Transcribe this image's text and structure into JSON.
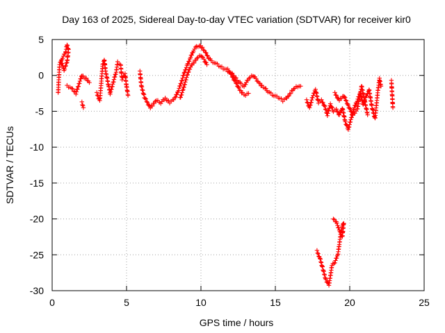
{
  "chart_data": {
    "type": "scatter",
    "title": "Day 163 of 2025, Sidereal Day-to-day VTEC variation (SDTVAR) for receiver kir0",
    "xlabel": "GPS time / hours",
    "ylabel": "SDTVAR / TECUs",
    "xlim": [
      0,
      25
    ],
    "ylim": [
      -30,
      5
    ],
    "xticks": [
      "0",
      "5",
      "10",
      "15",
      "20",
      "25"
    ],
    "yticks": [
      "5",
      "0",
      "-5",
      "-10",
      "-15",
      "-20",
      "-25",
      "-30"
    ],
    "grid": true,
    "marker": "+",
    "color": "#ff0000",
    "series": [
      {
        "name": "SDTVAR",
        "segments": [
          [
            [
              0.4,
              -2.5
            ],
            [
              0.5,
              1.5
            ],
            [
              0.7,
              2.5
            ],
            [
              0.9,
              3.2
            ],
            [
              1.0,
              4.3
            ],
            [
              1.1,
              3.5
            ],
            [
              1.0,
              1.8
            ],
            [
              0.8,
              0.8
            ],
            [
              0.6,
              2.0
            ]
          ],
          [
            [
              1.0,
              -1.5
            ],
            [
              1.3,
              -1.8
            ],
            [
              1.6,
              -2.5
            ],
            [
              1.8,
              -1.2
            ],
            [
              2.0,
              0.0
            ],
            [
              2.3,
              -0.5
            ],
            [
              2.5,
              -1.0
            ]
          ],
          [
            [
              2.0,
              -3.8
            ],
            [
              2.1,
              -4.5
            ]
          ],
          [
            [
              3.0,
              -2.5
            ],
            [
              3.2,
              -3.5
            ],
            [
              3.3,
              -1.0
            ],
            [
              3.4,
              1.5
            ],
            [
              3.5,
              2.2
            ],
            [
              3.6,
              0.5
            ],
            [
              3.8,
              -1.5
            ],
            [
              3.9,
              -2.5
            ],
            [
              4.1,
              -1.0
            ],
            [
              4.3,
              0.5
            ],
            [
              4.4,
              1.8
            ],
            [
              4.6,
              1.5
            ],
            [
              4.7,
              -0.5
            ],
            [
              4.9,
              0.2
            ],
            [
              5.0,
              -1.5
            ],
            [
              5.1,
              -2.8
            ]
          ],
          [
            [
              5.9,
              0.5
            ],
            [
              6.0,
              -1.5
            ],
            [
              6.2,
              -3.0
            ],
            [
              6.4,
              -3.8
            ],
            [
              6.6,
              -4.5
            ],
            [
              6.8,
              -4.0
            ],
            [
              7.0,
              -3.5
            ],
            [
              7.3,
              -3.8
            ],
            [
              7.6,
              -3.2
            ],
            [
              7.9,
              -3.8
            ],
            [
              8.1,
              -3.5
            ],
            [
              8.3,
              -3.0
            ],
            [
              8.5,
              -2.0
            ],
            [
              8.7,
              -0.8
            ],
            [
              8.9,
              0.5
            ],
            [
              9.1,
              1.5
            ],
            [
              9.3,
              2.5
            ],
            [
              9.5,
              3.5
            ],
            [
              9.7,
              4.0
            ],
            [
              9.9,
              4.2
            ],
            [
              10.1,
              3.8
            ],
            [
              10.3,
              3.2
            ],
            [
              10.5,
              2.5
            ],
            [
              10.7,
              2.0
            ],
            [
              10.9,
              1.8
            ],
            [
              11.1,
              1.5
            ],
            [
              11.3,
              1.2
            ],
            [
              11.5,
              1.0
            ],
            [
              11.7,
              0.8
            ],
            [
              11.9,
              0.5
            ],
            [
              12.1,
              0.2
            ],
            [
              12.3,
              -0.3
            ],
            [
              12.5,
              -0.8
            ],
            [
              12.7,
              -1.2
            ],
            [
              12.9,
              -1.5
            ],
            [
              13.1,
              -0.8
            ],
            [
              13.3,
              -0.3
            ],
            [
              13.5,
              0.0
            ],
            [
              13.7,
              -0.5
            ],
            [
              13.9,
              -1.0
            ],
            [
              14.1,
              -1.5
            ],
            [
              14.3,
              -1.8
            ],
            [
              14.5,
              -2.2
            ],
            [
              14.7,
              -2.5
            ],
            [
              14.9,
              -2.8
            ],
            [
              15.1,
              -3.0
            ],
            [
              15.3,
              -3.2
            ],
            [
              15.5,
              -3.5
            ],
            [
              15.7,
              -3.2
            ],
            [
              15.9,
              -2.8
            ],
            [
              16.1,
              -2.2
            ],
            [
              16.3,
              -1.8
            ],
            [
              16.5,
              -1.5
            ],
            [
              16.7,
              -1.5
            ]
          ],
          [
            [
              8.6,
              -3.2
            ],
            [
              8.8,
              -2.0
            ],
            [
              9.0,
              -0.5
            ],
            [
              9.2,
              0.8
            ],
            [
              9.4,
              1.5
            ],
            [
              9.6,
              2.0
            ],
            [
              9.8,
              2.5
            ],
            [
              10.0,
              2.8
            ],
            [
              10.2,
              2.2
            ],
            [
              10.4,
              1.5
            ]
          ],
          [
            [
              11.8,
              0.8
            ],
            [
              12.0,
              0.2
            ],
            [
              12.2,
              -0.5
            ],
            [
              12.4,
              -1.2
            ],
            [
              12.6,
              -2.0
            ],
            [
              12.8,
              -2.5
            ],
            [
              13.0,
              -2.8
            ],
            [
              13.2,
              -2.5
            ]
          ],
          [
            [
              17.1,
              -3.5
            ],
            [
              17.3,
              -4.5
            ],
            [
              17.5,
              -3.0
            ],
            [
              17.7,
              -2.0
            ],
            [
              17.9,
              -3.8
            ],
            [
              18.1,
              -3.5
            ],
            [
              18.3,
              -4.2
            ],
            [
              18.5,
              -5.5
            ],
            [
              18.7,
              -4.0
            ],
            [
              18.9,
              -5.0
            ],
            [
              19.1,
              -4.8
            ],
            [
              19.3,
              -5.5
            ],
            [
              19.5,
              -4.5
            ],
            [
              19.7,
              -6.5
            ],
            [
              19.9,
              -7.5
            ],
            [
              20.1,
              -6.0
            ],
            [
              20.3,
              -4.5
            ],
            [
              20.5,
              -3.5
            ],
            [
              20.7,
              -2.5
            ],
            [
              20.9,
              -4.0
            ],
            [
              21.1,
              -3.0
            ],
            [
              21.3,
              -2.0
            ],
            [
              21.5,
              -4.5
            ],
            [
              21.7,
              -6.0
            ],
            [
              21.9,
              -2.0
            ],
            [
              22.0,
              -0.5
            ],
            [
              22.1,
              -1.5
            ]
          ],
          [
            [
              19.0,
              -2.5
            ],
            [
              19.3,
              -3.5
            ],
            [
              19.6,
              -2.8
            ],
            [
              19.9,
              -4.2
            ],
            [
              20.2,
              -5.5
            ],
            [
              20.5,
              -4.8
            ],
            [
              20.8,
              -1.5
            ],
            [
              21.2,
              -5.5
            ]
          ],
          [
            [
              22.8,
              -0.8
            ],
            [
              22.9,
              -4.5
            ]
          ],
          [
            [
              17.8,
              -24.5
            ],
            [
              18.0,
              -25.5
            ],
            [
              18.2,
              -27.0
            ],
            [
              18.4,
              -28.5
            ],
            [
              18.6,
              -29.2
            ],
            [
              18.7,
              -28.0
            ],
            [
              18.8,
              -26.5
            ],
            [
              19.0,
              -26.0
            ],
            [
              19.2,
              -25.0
            ],
            [
              19.3,
              -23.5
            ],
            [
              19.4,
              -22.0
            ],
            [
              19.5,
              -21.0
            ],
            [
              19.6,
              -20.5
            ],
            [
              19.5,
              -22.5
            ],
            [
              19.3,
              -21.5
            ],
            [
              19.1,
              -20.5
            ],
            [
              18.9,
              -20.0
            ]
          ]
        ]
      }
    ]
  }
}
